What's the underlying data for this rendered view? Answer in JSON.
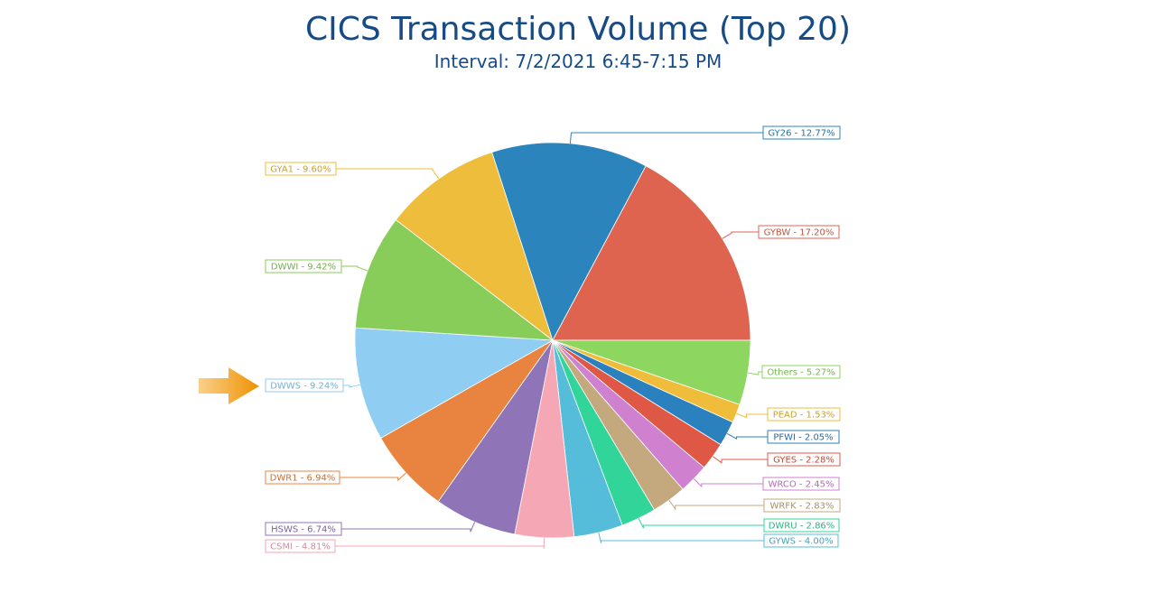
{
  "title": "CICS Transaction Volume (Top 20)",
  "subtitle": "Interval: 7/2/2021 6:45-7:15 PM",
  "highlight": {
    "icon": "orange-arrow-icon",
    "color": "#F39C12",
    "target": "DWWS"
  },
  "chart_data": {
    "type": "pie",
    "title": "CICS Transaction Volume (Top 20)",
    "subtitle": "Interval: 7/2/2021 6:45-7:15 PM",
    "unit": "%",
    "slices": [
      {
        "label": "GYBW",
        "value": 17.2,
        "display": "GYBW - 17.20%",
        "color": "#DE6450"
      },
      {
        "label": "Others",
        "value": 5.27,
        "display": "Others - 5.27%",
        "color": "#8DD660"
      },
      {
        "label": "PEAD",
        "value": 1.53,
        "display": "PEAD - 1.53%",
        "color": "#EFBD39"
      },
      {
        "label": "PFWI",
        "value": 2.05,
        "display": "PFWI - 2.05%",
        "color": "#2A81BE"
      },
      {
        "label": "GYES",
        "value": 2.28,
        "display": "GYES - 2.28%",
        "color": "#DE5845"
      },
      {
        "label": "WRCO",
        "value": 2.45,
        "display": "WRCO - 2.45%",
        "color": "#CF80CF"
      },
      {
        "label": "WRFK",
        "value": 2.83,
        "display": "WRFK - 2.83%",
        "color": "#C5A97E"
      },
      {
        "label": "DWRU",
        "value": 2.86,
        "display": "DWRU - 2.86%",
        "color": "#31D59A"
      },
      {
        "label": "GYWS",
        "value": 4.0,
        "display": "GYWS - 4.00%",
        "color": "#55BCDA"
      },
      {
        "label": "CSMI",
        "value": 4.81,
        "display": "CSMI - 4.81%",
        "color": "#F5A7B5"
      },
      {
        "label": "HSWS",
        "value": 6.74,
        "display": "HSWS - 6.74%",
        "color": "#8F74B8"
      },
      {
        "label": "DWR1",
        "value": 6.94,
        "display": "DWR1 - 6.94%",
        "color": "#E88440"
      },
      {
        "label": "DWWS",
        "value": 9.24,
        "display": "DWWS - 9.24%",
        "color": "#90CDF2"
      },
      {
        "label": "DWWI",
        "value": 9.42,
        "display": "DWWI - 9.42%",
        "color": "#88CD59"
      },
      {
        "label": "GYA1",
        "value": 9.6,
        "display": "GYA1 - 9.60%",
        "color": "#EDBD3B"
      },
      {
        "label": "GY26",
        "value": 12.77,
        "display": "GY26 - 12.77%",
        "color": "#2B84BB"
      }
    ],
    "legend": "none",
    "labels": "callouts"
  }
}
